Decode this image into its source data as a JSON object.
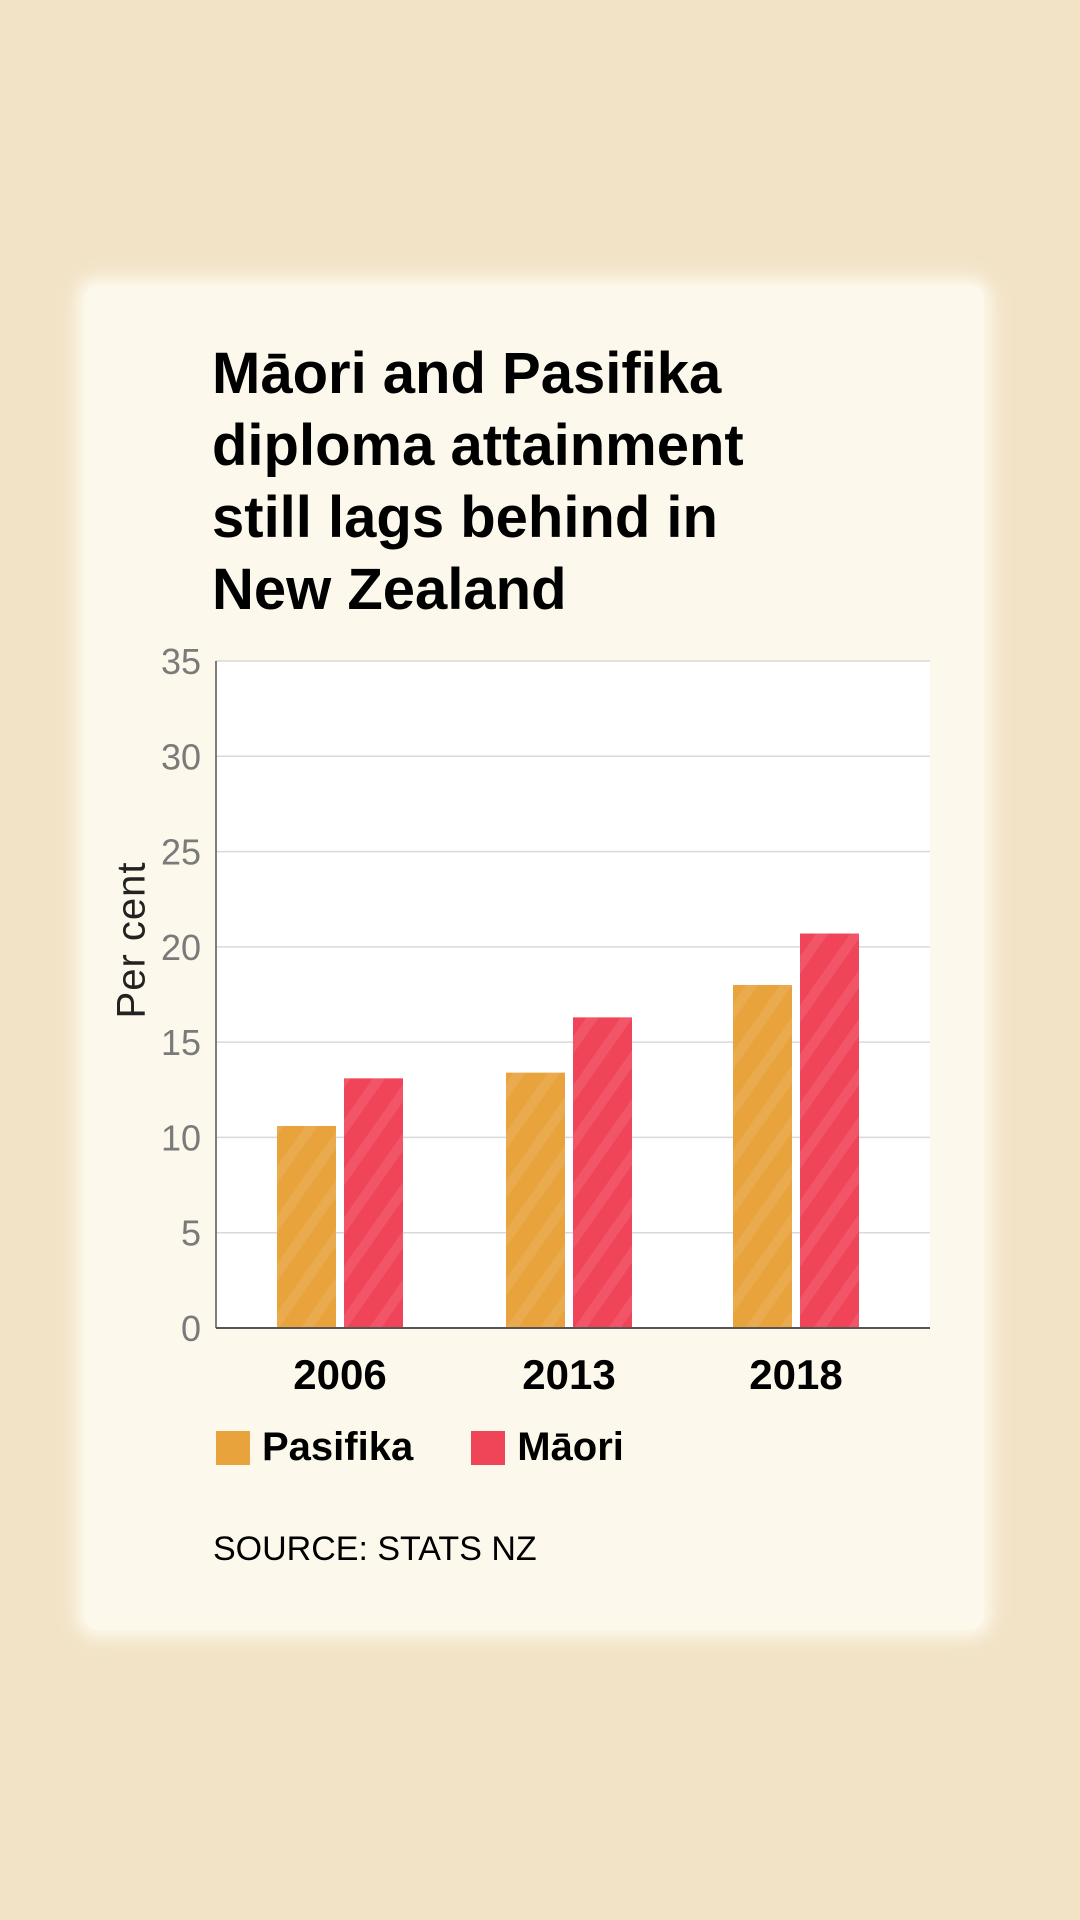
{
  "colors": {
    "background": "#f2e3c6",
    "card": "#fcf8ec",
    "plot_background": "#ffffff",
    "gridline": "#d9d9d9",
    "axis": "#555555",
    "tick_label": "#7a7a7a"
  },
  "chart_data": {
    "type": "bar",
    "title": "Māori and Pasifika\ndiploma attainment\nstill lags behind in\nNew Zealand",
    "xlabel": "",
    "ylabel": "Per cent",
    "categories": [
      "2006",
      "2013",
      "2018"
    ],
    "series": [
      {
        "name": "Pasifika",
        "color": "#e8a33c",
        "values": [
          10.6,
          13.4,
          18.0
        ]
      },
      {
        "name": "Māori",
        "color": "#f04458",
        "values": [
          13.1,
          16.3,
          20.7
        ]
      }
    ],
    "ylim": [
      0,
      35
    ],
    "yticks": [
      0,
      5,
      10,
      15,
      20,
      25,
      30,
      35
    ],
    "grid": true,
    "legend": "bottom-left"
  },
  "source": "SOURCE: STATS NZ"
}
